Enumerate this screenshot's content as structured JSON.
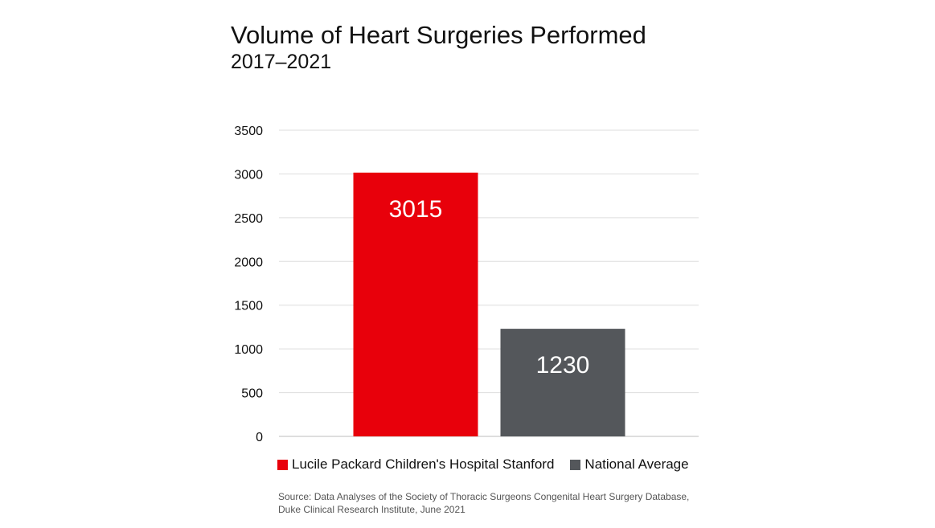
{
  "chart_data": {
    "type": "bar",
    "title": "Volume of Heart Surgeries Performed",
    "subtitle": "2017–2021",
    "categories": [
      "Lucile Packard Children's Hospital Stanford",
      "National Average"
    ],
    "values": [
      3015,
      1230
    ],
    "data_labels": [
      "3015",
      "1230"
    ],
    "colors": [
      "#e8000b",
      "#54575b"
    ],
    "ylim": [
      0,
      3500
    ],
    "yticks": [
      0,
      500,
      1000,
      1500,
      2000,
      2500,
      3000,
      3500
    ],
    "ytick_labels": [
      "0",
      "500",
      "1000",
      "1500",
      "2000",
      "2500",
      "3000",
      "3500"
    ],
    "xlabel": "",
    "ylabel": "",
    "grid": true,
    "legend_position": "bottom",
    "legend": [
      {
        "label": "Lucile Packard Children's Hospital Stanford",
        "color": "#e8000b"
      },
      {
        "label": "National Average",
        "color": "#54575b"
      }
    ],
    "source": {
      "line1": "Source: Data Analyses of the Society of Thoracic Surgeons Congenital Heart Surgery Database,",
      "line2": "Duke Clinical Research Institute, June 2021"
    }
  }
}
